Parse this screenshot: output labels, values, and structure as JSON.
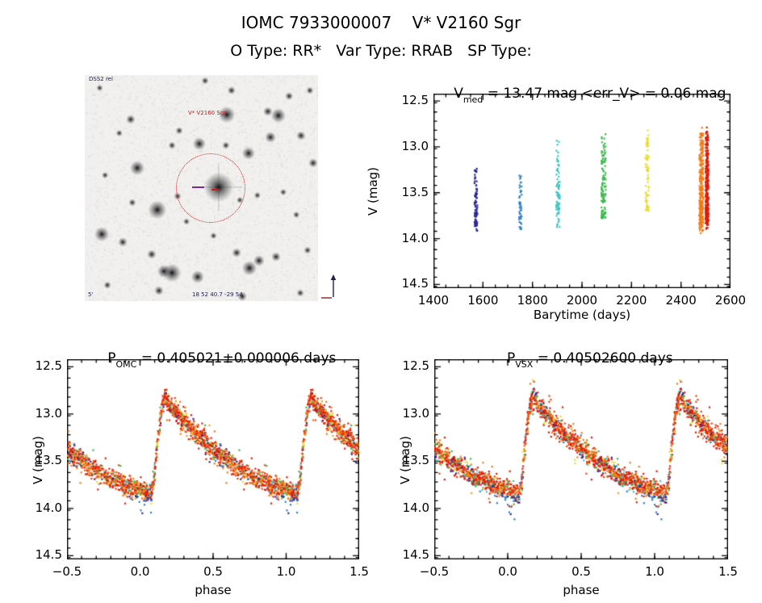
{
  "header": {
    "title": "IOMC 7933000007    V* V2160 Sgr",
    "subtitle": "O Type: RR*   Var Type: RRAB   SP Type:"
  },
  "panel_titles": {
    "bary": {
      "pre": "V",
      "sub": "med",
      "post": " = 13.47 mag <err_V> = 0.06 mag"
    },
    "omc": {
      "pre": "P",
      "sub": "OMC",
      "post": " = 0.405021±0.000006 days"
    },
    "vsx": {
      "pre": "P",
      "sub": "VSX",
      "post": " = 0.40502600 days"
    }
  },
  "finding_chart": {
    "target_label": "V* V2160 Sgr",
    "corner_top_left": "DSS2 rel",
    "corner_bottom_left": "5'",
    "corner_bottom_center": "18 52 40.7 -29 54",
    "circle_color": "#c42020",
    "stars": [
      [
        0.516,
        0.025,
        2
      ],
      [
        0.609,
        0.175,
        4.5
      ],
      [
        0.83,
        0.179,
        4
      ],
      [
        0.785,
        0.161,
        2.5
      ],
      [
        0.197,
        0.196,
        2.5
      ],
      [
        0.965,
        0.068,
        2
      ],
      [
        0.927,
        0.268,
        2.5
      ],
      [
        0.796,
        0.275,
        3
      ],
      [
        0.491,
        0.304,
        3.5
      ],
      [
        0.405,
        0.246,
        2
      ],
      [
        0.374,
        0.311,
        2
      ],
      [
        0.702,
        0.346,
        3.5
      ],
      [
        0.605,
        0.311,
        2
      ],
      [
        0.979,
        0.389,
        2.5
      ],
      [
        0.225,
        0.411,
        4
      ],
      [
        0.574,
        0.496,
        8
      ],
      [
        0.311,
        0.596,
        5
      ],
      [
        0.398,
        0.536,
        2
      ],
      [
        0.073,
        0.704,
        4
      ],
      [
        0.163,
        0.739,
        2.5
      ],
      [
        0.287,
        0.793,
        2.5
      ],
      [
        0.374,
        0.875,
        5
      ],
      [
        0.339,
        0.868,
        3.5
      ],
      [
        0.484,
        0.893,
        3.5
      ],
      [
        0.706,
        0.854,
        4
      ],
      [
        0.747,
        0.821,
        3
      ],
      [
        0.651,
        0.786,
        2.5
      ],
      [
        0.82,
        0.804,
        2.5
      ],
      [
        0.318,
        0.954,
        2.5
      ],
      [
        0.097,
        0.929,
        2
      ],
      [
        0.675,
        0.979,
        2.5
      ],
      [
        0.924,
        0.964,
        2
      ],
      [
        0.955,
        0.775,
        2
      ],
      [
        0.064,
        0.057,
        1.8
      ],
      [
        0.204,
        0.564,
        2
      ],
      [
        0.74,
        0.532,
        1.8
      ],
      [
        0.436,
        0.648,
        1.8
      ],
      [
        0.851,
        0.518,
        1.8
      ],
      [
        0.876,
        0.093,
        2.2
      ],
      [
        0.629,
        0.068,
        2.2
      ],
      [
        0.148,
        0.257,
        1.8
      ],
      [
        0.907,
        0.618,
        1.8
      ],
      [
        0.552,
        0.711,
        1.8
      ],
      [
        0.087,
        0.443,
        1.8
      ],
      [
        0.665,
        0.553,
        1.8
      ]
    ]
  },
  "lightcurve_model": {
    "template": [
      [
        0.0,
        13.8
      ],
      [
        0.03,
        13.825
      ],
      [
        0.06,
        13.845
      ],
      [
        0.08,
        13.845
      ],
      [
        0.095,
        13.7
      ],
      [
        0.11,
        13.45
      ],
      [
        0.13,
        13.12
      ],
      [
        0.15,
        12.91
      ],
      [
        0.17,
        12.83
      ],
      [
        0.185,
        12.85
      ],
      [
        0.21,
        12.92
      ],
      [
        0.25,
        12.99
      ],
      [
        0.3,
        13.07
      ],
      [
        0.35,
        13.15
      ],
      [
        0.4,
        13.225
      ],
      [
        0.45,
        13.3
      ],
      [
        0.5,
        13.37
      ],
      [
        0.55,
        13.435
      ],
      [
        0.6,
        13.495
      ],
      [
        0.65,
        13.55
      ],
      [
        0.7,
        13.6
      ],
      [
        0.75,
        13.645
      ],
      [
        0.8,
        13.685
      ],
      [
        0.85,
        13.715
      ],
      [
        0.9,
        13.745
      ],
      [
        0.95,
        13.775
      ],
      [
        1.0,
        13.8
      ]
    ],
    "noise": 0.05,
    "palette": [
      "#e01b0a",
      "#f04010",
      "#f17c16",
      "#f6a21c",
      "#e9dc30",
      "#3bb84e",
      "#3ac4c4",
      "#2f7fc4",
      "#28289a"
    ],
    "weights": [
      0.38,
      0.14,
      0.2,
      0.05,
      0.05,
      0.07,
      0.04,
      0.02,
      0.05
    ]
  },
  "chart_data": [
    {
      "id": "bary",
      "type": "scatter",
      "title": "V_med = 13.47 mag <err_V> = 0.06 mag",
      "xlabel": "Barytime (days)",
      "ylabel": "V (mag)",
      "xlim": [
        1400,
        2600
      ],
      "ylim": [
        14.54,
        12.42
      ],
      "x_ticks": {
        "values": [
          1400,
          1600,
          1800,
          2000,
          2200,
          2400,
          2600
        ],
        "labels": [
          "1400",
          "1600",
          "1800",
          "2000",
          "2200",
          "2400",
          "2600"
        ],
        "minor": 50
      },
      "y_ticks": {
        "values": [
          12.5,
          13.0,
          13.5,
          14.0,
          14.5
        ],
        "labels": [
          "12.5",
          "13.0",
          "13.5",
          "14.0",
          "14.5"
        ],
        "minor": 0.1
      },
      "seed": 7,
      "clusters": [
        {
          "t": 1571,
          "dt": 6,
          "n": 85,
          "color": "#28289a",
          "vmin": 13.22,
          "vmax": 14.06
        },
        {
          "t": 1751,
          "dt": 5,
          "n": 45,
          "color": "#2f7fc4",
          "vmin": 13.3,
          "vmax": 14.07
        },
        {
          "t": 1903,
          "dt": 7,
          "n": 75,
          "color": "#3ac4c4",
          "vmin": 12.9,
          "vmax": 13.9
        },
        {
          "t": 2087,
          "dt": 9,
          "n": 115,
          "color": "#3bb84e",
          "vmin": 12.84,
          "vmax": 13.78
        },
        {
          "t": 2263,
          "dt": 7,
          "n": 75,
          "color": "#e9dc30",
          "vmin": 12.7,
          "vmax": 13.7
        },
        {
          "t": 2482,
          "dt": 8,
          "n": 270,
          "color": "#f17c16",
          "vmin": 12.78,
          "vmax": 13.97
        },
        {
          "t": 2505,
          "dt": 6,
          "n": 320,
          "color": "#e01b0a",
          "vmin": 12.68,
          "vmax": 13.93
        }
      ]
    },
    {
      "id": "omc",
      "type": "scatter",
      "title": "P_OMC = 0.405021±0.000006 days",
      "xlabel": "phase",
      "ylabel": "V (mag)",
      "xlim": [
        -0.5,
        1.5
      ],
      "ylim": [
        14.54,
        12.42
      ],
      "x_ticks": {
        "values": [
          -0.5,
          0,
          0.5,
          1,
          1.5
        ],
        "labels": [
          "−0.5",
          "0.0",
          "0.5",
          "1.0",
          "1.5"
        ],
        "minor": 0.1
      },
      "y_ticks": {
        "values": [
          12.5,
          13.0,
          13.5,
          14.0,
          14.5
        ],
        "labels": [
          "12.5",
          "13.0",
          "13.5",
          "14.0",
          "14.5"
        ],
        "minor": 0.1
      },
      "seed": 11,
      "n": 1350,
      "deep_points": [
        [
          0.995,
          13.93
        ],
        [
          0.005,
          14.02
        ],
        [
          0.015,
          14.05
        ],
        [
          0.03,
          13.96
        ],
        [
          0.045,
          13.9
        ],
        [
          0.97,
          13.87
        ]
      ]
    },
    {
      "id": "vsx",
      "type": "scatter",
      "title": "P_VSX = 0.40502600 days",
      "xlabel": "phase",
      "ylabel": "V (mag)",
      "xlim": [
        -0.5,
        1.5
      ],
      "ylim": [
        14.54,
        12.42
      ],
      "x_ticks": {
        "values": [
          -0.5,
          0,
          0.5,
          1,
          1.5
        ],
        "labels": [
          "−0.5",
          "0.0",
          "0.5",
          "1.0",
          "1.5"
        ],
        "minor": 0.1
      },
      "y_ticks": {
        "values": [
          12.5,
          13.0,
          13.5,
          14.0,
          14.5
        ],
        "labels": [
          "12.5",
          "13.0",
          "13.5",
          "14.0",
          "14.5"
        ],
        "minor": 0.1
      },
      "seed": 23,
      "n": 1350,
      "deep_points": [
        [
          0.0,
          13.96
        ],
        [
          0.01,
          14.04
        ],
        [
          0.02,
          14.06
        ],
        [
          0.04,
          13.92
        ],
        [
          0.98,
          13.88
        ],
        [
          0.96,
          13.84
        ]
      ]
    }
  ]
}
